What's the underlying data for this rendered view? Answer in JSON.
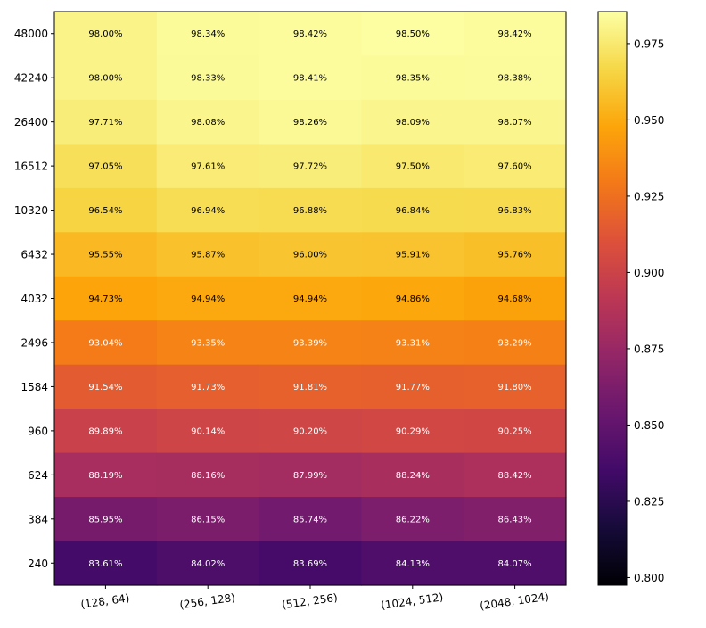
{
  "chart_data": {
    "type": "heatmap",
    "title": "",
    "xlabel": "",
    "ylabel": "",
    "x_categories": [
      "(128, 64)",
      "(256, 128)",
      "(512, 256)",
      "(1024, 512)",
      "(2048, 1024)"
    ],
    "y_categories": [
      "48000",
      "42240",
      "26400",
      "16512",
      "10320",
      "6432",
      "4032",
      "2496",
      "1584",
      "960",
      "624",
      "384",
      "240"
    ],
    "values": [
      [
        0.98,
        0.9834,
        0.9842,
        0.985,
        0.9842
      ],
      [
        0.98,
        0.9833,
        0.9841,
        0.9835,
        0.9838
      ],
      [
        0.9771,
        0.9808,
        0.9826,
        0.9809,
        0.9807
      ],
      [
        0.9705,
        0.9761,
        0.9772,
        0.975,
        0.976
      ],
      [
        0.9654,
        0.9694,
        0.9688,
        0.9684,
        0.9683
      ],
      [
        0.9555,
        0.9587,
        0.96,
        0.9591,
        0.9576
      ],
      [
        0.9473,
        0.9494,
        0.9494,
        0.9486,
        0.9468
      ],
      [
        0.9304,
        0.9335,
        0.9339,
        0.9331,
        0.9329
      ],
      [
        0.9154,
        0.9173,
        0.9181,
        0.9177,
        0.918
      ],
      [
        0.8989,
        0.9014,
        0.902,
        0.9029,
        0.9025
      ],
      [
        0.8819,
        0.8816,
        0.8799,
        0.8824,
        0.8842
      ],
      [
        0.8595,
        0.8615,
        0.8574,
        0.8622,
        0.8643
      ],
      [
        0.8361,
        0.8402,
        0.8369,
        0.8413,
        0.8407
      ]
    ],
    "cell_labels": [
      [
        "98.00%",
        "98.34%",
        "98.42%",
        "98.50%",
        "98.42%"
      ],
      [
        "98.00%",
        "98.33%",
        "98.41%",
        "98.35%",
        "98.38%"
      ],
      [
        "97.71%",
        "98.08%",
        "98.26%",
        "98.09%",
        "98.07%"
      ],
      [
        "97.05%",
        "97.61%",
        "97.72%",
        "97.50%",
        "97.60%"
      ],
      [
        "96.54%",
        "96.94%",
        "96.88%",
        "96.84%",
        "96.83%"
      ],
      [
        "95.55%",
        "95.87%",
        "96.00%",
        "95.91%",
        "95.76%"
      ],
      [
        "94.73%",
        "94.94%",
        "94.94%",
        "94.86%",
        "94.68%"
      ],
      [
        "93.04%",
        "93.35%",
        "93.39%",
        "93.31%",
        "93.29%"
      ],
      [
        "91.54%",
        "91.73%",
        "91.81%",
        "91.77%",
        "91.80%"
      ],
      [
        "89.89%",
        "90.14%",
        "90.20%",
        "90.29%",
        "90.25%"
      ],
      [
        "88.19%",
        "88.16%",
        "87.99%",
        "88.24%",
        "88.42%"
      ],
      [
        "85.95%",
        "86.15%",
        "85.74%",
        "86.22%",
        "86.43%"
      ],
      [
        "83.61%",
        "84.02%",
        "83.69%",
        "84.13%",
        "84.07%"
      ]
    ],
    "colormap": "inferno",
    "vmin": 0.7975,
    "vmax": 0.9855,
    "colorbar_ticks": [
      "0.800",
      "0.825",
      "0.850",
      "0.875",
      "0.900",
      "0.925",
      "0.950",
      "0.975"
    ],
    "colorbar_tick_values": [
      0.8,
      0.825,
      0.85,
      0.875,
      0.9,
      0.925,
      0.95,
      0.975
    ],
    "x_tick_rotation": "slight",
    "grid": false
  }
}
